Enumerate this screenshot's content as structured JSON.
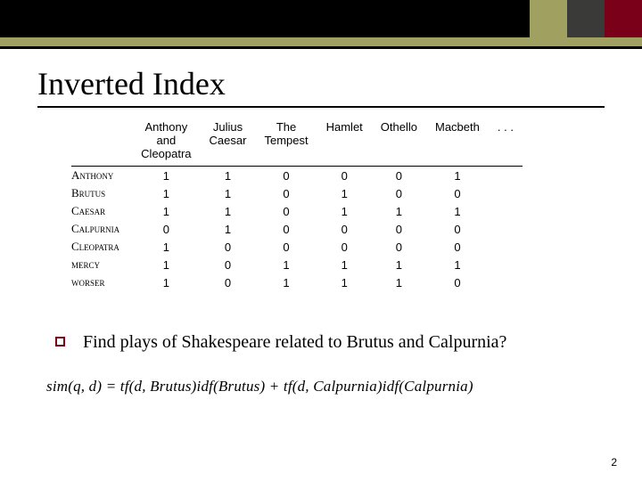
{
  "colors": {
    "olive": "#a0a060",
    "dark_square": "#3a3a38",
    "maroon": "#7a0019",
    "black": "#000000",
    "white": "#ffffff"
  },
  "title": "Inverted Index",
  "table": {
    "columns": [
      "Anthony and Cleopatra",
      "Julius Caesar",
      "The Tempest",
      "Hamlet",
      "Othello",
      "Macbeth",
      ". . ."
    ],
    "rows": [
      {
        "label": "Anthony",
        "values": [
          "1",
          "1",
          "0",
          "0",
          "0",
          "1"
        ]
      },
      {
        "label": "Brutus",
        "values": [
          "1",
          "1",
          "0",
          "1",
          "0",
          "0"
        ]
      },
      {
        "label": "Caesar",
        "values": [
          "1",
          "1",
          "0",
          "1",
          "1",
          "1"
        ]
      },
      {
        "label": "Calpurnia",
        "values": [
          "0",
          "1",
          "0",
          "0",
          "0",
          "0"
        ]
      },
      {
        "label": "Cleopatra",
        "values": [
          "1",
          "0",
          "0",
          "0",
          "0",
          "0"
        ]
      },
      {
        "label": "mercy",
        "values": [
          "1",
          "0",
          "1",
          "1",
          "1",
          "1"
        ]
      },
      {
        "label": "worser",
        "values": [
          "1",
          "0",
          "1",
          "1",
          "1",
          "0"
        ]
      }
    ]
  },
  "bullet_text": "Find plays of Shakespeare related to Brutus and Calpurnia?",
  "formula": "sim(q, d) = tf(d, Brutus)idf(Brutus) + tf(d, Calpurnia)idf(Calpurnia)",
  "page_number": "2"
}
